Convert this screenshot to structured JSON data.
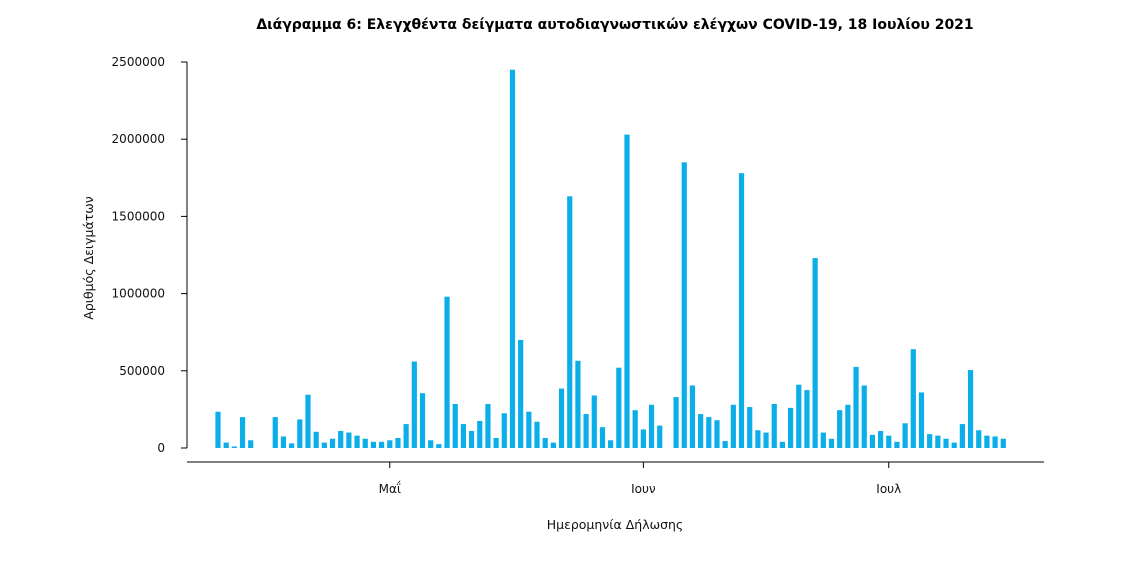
{
  "chart_data": {
    "type": "bar",
    "title": "Διάγραμμα 6: Ελεγχθέντα δείγματα αυτοδιαγνωστικών ελέγχων COVID-19, 18 Ιουλίου 2021",
    "xlabel": "Ημερομηνία Δήλωσης",
    "ylabel": "Αριθμός Δειγμάτων",
    "ylim": [
      0,
      2500000
    ],
    "yticks": [
      "0",
      "500000",
      "1000000",
      "1500000",
      "2000000",
      "2500000"
    ],
    "xticks": [
      {
        "label": "Μαΐ",
        "date": "2021-05-01"
      },
      {
        "label": "Ιουν",
        "date": "2021-06-01"
      },
      {
        "label": "Ιουλ",
        "date": "2021-07-01"
      }
    ],
    "color": "#0baee8",
    "grid": false,
    "legend": "none",
    "x": [
      "2021-04-10",
      "2021-04-11",
      "2021-04-12",
      "2021-04-13",
      "2021-04-14",
      "2021-04-15",
      "2021-04-16",
      "2021-04-17",
      "2021-04-18",
      "2021-04-19",
      "2021-04-20",
      "2021-04-21",
      "2021-04-22",
      "2021-04-23",
      "2021-04-24",
      "2021-04-25",
      "2021-04-26",
      "2021-04-27",
      "2021-04-28",
      "2021-04-29",
      "2021-04-30",
      "2021-05-01",
      "2021-05-02",
      "2021-05-03",
      "2021-05-04",
      "2021-05-05",
      "2021-05-06",
      "2021-05-07",
      "2021-05-08",
      "2021-05-09",
      "2021-05-10",
      "2021-05-11",
      "2021-05-12",
      "2021-05-13",
      "2021-05-14",
      "2021-05-15",
      "2021-05-16",
      "2021-05-17",
      "2021-05-18",
      "2021-05-19",
      "2021-05-20",
      "2021-05-21",
      "2021-05-22",
      "2021-05-23",
      "2021-05-24",
      "2021-05-25",
      "2021-05-26",
      "2021-05-27",
      "2021-05-28",
      "2021-05-29",
      "2021-05-30",
      "2021-05-31",
      "2021-06-01",
      "2021-06-02",
      "2021-06-03",
      "2021-06-04",
      "2021-06-05",
      "2021-06-06",
      "2021-06-07",
      "2021-06-08",
      "2021-06-09",
      "2021-06-10",
      "2021-06-11",
      "2021-06-12",
      "2021-06-13",
      "2021-06-14",
      "2021-06-15",
      "2021-06-16",
      "2021-06-17",
      "2021-06-18",
      "2021-06-19",
      "2021-06-20",
      "2021-06-21",
      "2021-06-22",
      "2021-06-23",
      "2021-06-24",
      "2021-06-25",
      "2021-06-26",
      "2021-06-27",
      "2021-06-28",
      "2021-06-29",
      "2021-06-30",
      "2021-07-01",
      "2021-07-02",
      "2021-07-03",
      "2021-07-04",
      "2021-07-05",
      "2021-07-06",
      "2021-07-07",
      "2021-07-08",
      "2021-07-09",
      "2021-07-10",
      "2021-07-11",
      "2021-07-12",
      "2021-07-13",
      "2021-07-14",
      "2021-07-15",
      "2021-07-16"
    ],
    "values": [
      235000,
      35000,
      10000,
      200000,
      50000,
      0,
      0,
      200000,
      75000,
      30000,
      185000,
      345000,
      105000,
      35000,
      60000,
      110000,
      100000,
      80000,
      60000,
      40000,
      40000,
      50000,
      65000,
      155000,
      560000,
      355000,
      50000,
      25000,
      980000,
      285000,
      155000,
      110000,
      175000,
      285000,
      65000,
      225000,
      2450000,
      700000,
      235000,
      170000,
      65000,
      35000,
      385000,
      1630000,
      565000,
      220000,
      340000,
      135000,
      50000,
      520000,
      2030000,
      245000,
      120000,
      280000,
      145000,
      0,
      330000,
      1850000,
      405000,
      220000,
      200000,
      180000,
      45000,
      280000,
      1780000,
      265000,
      115000,
      100000,
      285000,
      40000,
      260000,
      410000,
      375000,
      1230000,
      100000,
      60000,
      245000,
      280000,
      525000,
      405000,
      85000,
      110000,
      80000,
      40000,
      160000,
      640000,
      360000,
      90000,
      80000,
      60000,
      35000,
      155000,
      505000,
      115000,
      80000,
      75000,
      60000,
      0
    ]
  }
}
